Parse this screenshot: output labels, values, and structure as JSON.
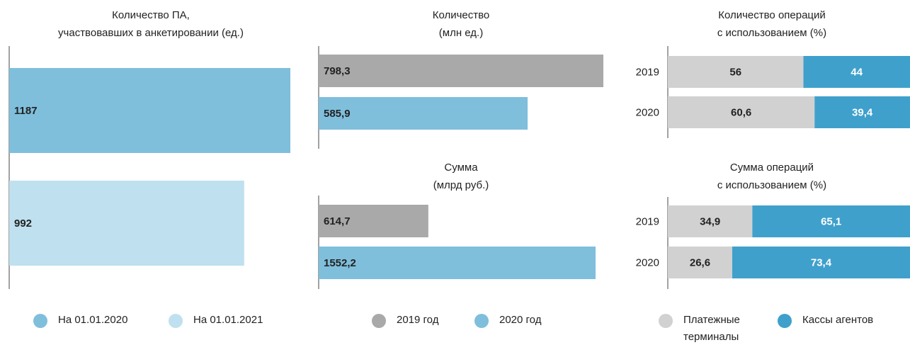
{
  "chart_data": [
    {
      "type": "hbar",
      "title": [
        "Количество ПА,",
        "участвовавших в анкетировании (ед.)"
      ],
      "series": [
        {
          "name": "На 01.01.2020",
          "color": "#7fbfdc",
          "values": [
            1187
          ]
        },
        {
          "name": "На 01.01.2021",
          "color": "#bfe0ef",
          "values": [
            992
          ]
        }
      ]
    },
    {
      "type": "hbar",
      "title": [
        "Количество",
        "(млн ед.)"
      ],
      "series": [
        {
          "name": "2019 год",
          "color": "#a9a9a9",
          "values": [
            798.3
          ],
          "value_labels": [
            "798,3"
          ]
        },
        {
          "name": "2020 год",
          "color": "#7fbfdc",
          "values": [
            585.9
          ],
          "value_labels": [
            "585,9"
          ]
        }
      ]
    },
    {
      "type": "hbar",
      "title": [
        "Сумма",
        "(млрд руб.)"
      ],
      "series": [
        {
          "color": "#a9a9a9",
          "values": [
            614.7
          ],
          "value_labels": [
            "614,7"
          ]
        },
        {
          "color": "#7fbfdc",
          "values": [
            1552.2
          ],
          "value_labels": [
            "1552,2"
          ]
        }
      ]
    },
    {
      "type": "stacked",
      "title": [
        "Количество операций",
        "с использованием (%)"
      ],
      "categories": [
        "2019",
        "2020"
      ],
      "series": [
        {
          "name": "Платежные терминалы",
          "color": "#d1d1d1",
          "values": [
            56,
            60.6
          ],
          "value_labels": [
            "56",
            "60,6"
          ]
        },
        {
          "name": "Кассы агентов",
          "color": "#3fa0cc",
          "values": [
            44,
            39.4
          ],
          "value_labels": [
            "44",
            "39,4"
          ]
        }
      ]
    },
    {
      "type": "stacked",
      "title": [
        "Сумма операций",
        "с использованием (%)"
      ],
      "categories": [
        "2019",
        "2020"
      ],
      "series": [
        {
          "color": "#d1d1d1",
          "values": [
            34.9,
            26.6
          ],
          "value_labels": [
            "34,9",
            "26,6"
          ]
        },
        {
          "color": "#3fa0cc",
          "values": [
            65.1,
            73.4
          ],
          "value_labels": [
            "65,1",
            "73,4"
          ]
        }
      ]
    }
  ]
}
